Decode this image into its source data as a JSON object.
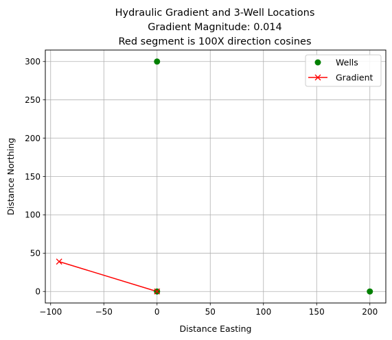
{
  "chart_data": {
    "type": "scatter",
    "title_lines": [
      "Hydraulic Gradient and 3-Well Locations",
      "Gradient Magnitude: 0.014",
      "Red segment is 100X direction cosines"
    ],
    "xlabel": "Distance Easting",
    "ylabel": "Distance Northing",
    "xlim": [
      -105,
      215
    ],
    "ylim": [
      -15,
      315
    ],
    "xticks": [
      -100,
      -50,
      0,
      50,
      100,
      150,
      200
    ],
    "yticks": [
      0,
      50,
      100,
      150,
      200,
      250,
      300
    ],
    "xtick_labels": [
      "−100",
      "−50",
      "0",
      "50",
      "100",
      "150",
      "200"
    ],
    "ytick_labels": [
      "0",
      "50",
      "100",
      "150",
      "200",
      "250",
      "300"
    ],
    "grid": true,
    "legend_position": "top-right",
    "series": [
      {
        "name": "Wells",
        "kind": "points",
        "marker": "circle",
        "color": "#008000",
        "x": [
          0,
          0,
          200
        ],
        "y": [
          0,
          300,
          0
        ]
      },
      {
        "name": "Gradient",
        "kind": "line",
        "marker": "x",
        "color": "#ff0000",
        "x": [
          0,
          -92
        ],
        "y": [
          0,
          39
        ]
      }
    ]
  }
}
